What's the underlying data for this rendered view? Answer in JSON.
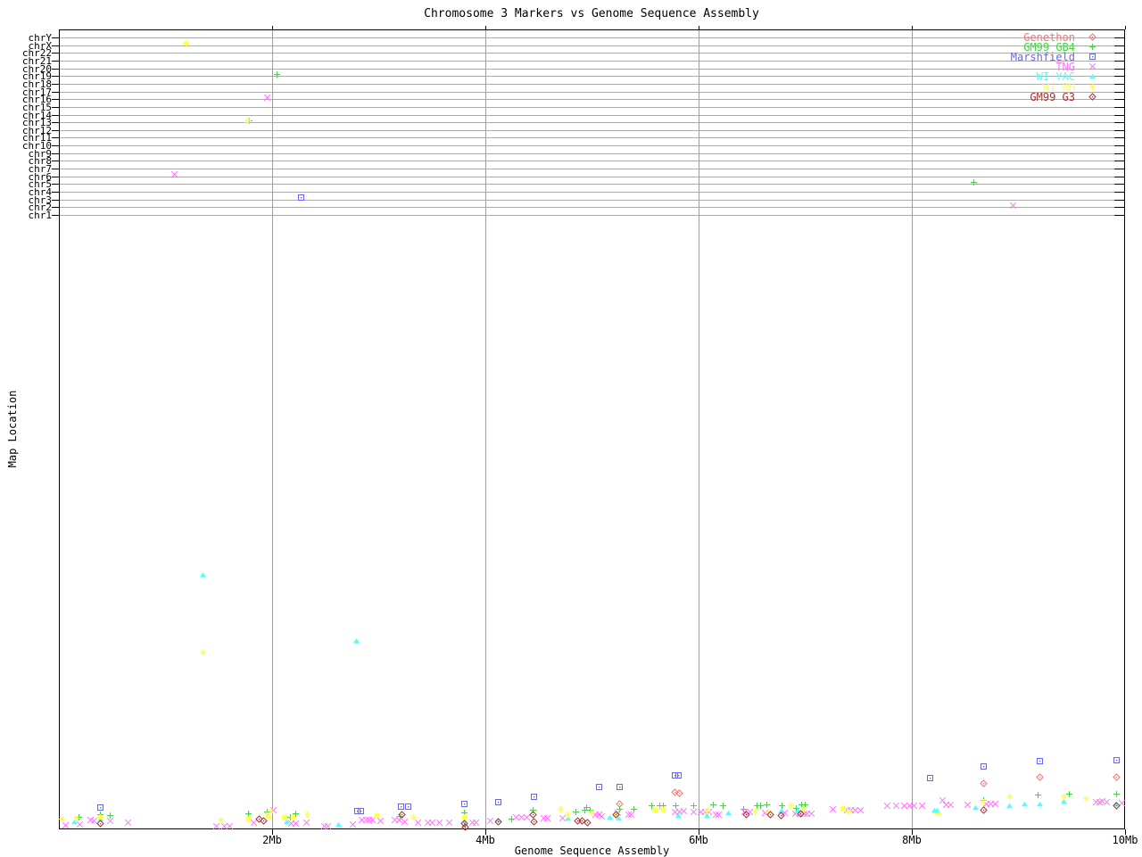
{
  "chart_data": {
    "type": "scatter",
    "title": "Chromosome 3 Markers vs Genome Sequence Assembly",
    "xlabel": "Genome Sequence Assembly",
    "ylabel": "Map Location",
    "x_axis": {
      "units": "Mb of genome sequence assembly",
      "range_mb": [
        0,
        10
      ],
      "major_ticks_mb": [
        2,
        4,
        6,
        8,
        10
      ],
      "tick_labels": [
        "2Mb",
        "4Mb",
        "6Mb",
        "8Mb",
        "10Mb"
      ],
      "gridlines_at_mb": [
        2,
        4,
        6,
        8
      ]
    },
    "y_axis": {
      "top_section_chromosome_rows": [
        "chrY",
        "chrX",
        "chr22",
        "chr21",
        "chr20",
        "chr19",
        "chr18",
        "chr17",
        "chr16",
        "chr15",
        "chr14",
        "chr13",
        "chr12",
        "chr11",
        "chr10",
        "chr9",
        "chr8",
        "chr7",
        "chr6",
        "chr5",
        "chr4",
        "chr3",
        "chr2",
        "chr1"
      ],
      "bottom_section": "continuous chr3 map location, unlabeled, 0 at bottom axis rising toward the right",
      "gridlines": "horizontal gray line across plot at every chromosome row"
    },
    "legend_position": "top-right-inside",
    "point_encoding": "each point = [x in Mb, y]; y is a chromosome-row name string for the discrete top section, or the screen pixel row (960px image) for the unlabeled continuous map-location section",
    "series": [
      {
        "name": "Genethon",
        "symbol": "diamond-dot",
        "color": "#ff7070",
        "points": [
          [
            5.26,
            901
          ],
          [
            5.78,
            888
          ],
          [
            5.82,
            889
          ],
          [
            8.67,
            878
          ],
          [
            9.2,
            871
          ],
          [
            9.92,
            871
          ]
        ]
      },
      {
        "name": "GM99 GB4",
        "symbol": "plus",
        "color": "#3cdc3c",
        "points": [
          [
            1.19,
            "chrX"
          ],
          [
            2.05,
            "chr19"
          ],
          [
            1.79,
            "chr13"
          ],
          [
            8.58,
            "chr5"
          ],
          [
            0.19,
            916
          ],
          [
            0.39,
            913
          ],
          [
            0.48,
            914
          ],
          [
            1.78,
            912
          ],
          [
            1.95,
            910
          ],
          [
            2.17,
            916
          ],
          [
            2.22,
            912
          ],
          [
            3.2,
            915
          ],
          [
            3.8,
            911
          ],
          [
            4.25,
            918
          ],
          [
            4.45,
            908
          ],
          [
            4.85,
            910
          ],
          [
            4.93,
            908
          ],
          [
            4.95,
            905
          ],
          [
            4.98,
            908
          ],
          [
            5.26,
            907
          ],
          [
            5.39,
            907
          ],
          [
            5.56,
            903
          ],
          [
            5.64,
            903
          ],
          [
            5.67,
            903
          ],
          [
            5.79,
            903
          ],
          [
            5.95,
            903
          ],
          [
            6.14,
            902
          ],
          [
            6.23,
            903
          ],
          [
            6.42,
            907
          ],
          [
            6.55,
            903
          ],
          [
            6.58,
            903
          ],
          [
            6.64,
            902
          ],
          [
            6.78,
            903
          ],
          [
            6.92,
            906
          ],
          [
            6.97,
            902
          ],
          [
            7.0,
            902
          ],
          [
            8.67,
            897
          ],
          [
            9.18,
            891
          ],
          [
            9.48,
            890
          ],
          [
            9.92,
            890
          ]
        ]
      },
      {
        "name": "Marshfield",
        "symbol": "square-dot",
        "color": "#6464ff",
        "points": [
          [
            2.27,
            "chr3"
          ],
          [
            0.39,
            905
          ],
          [
            2.8,
            909
          ],
          [
            2.83,
            909
          ],
          [
            3.21,
            904
          ],
          [
            3.28,
            904
          ],
          [
            3.8,
            901
          ],
          [
            4.12,
            899
          ],
          [
            4.46,
            893
          ],
          [
            5.07,
            882
          ],
          [
            5.26,
            882
          ],
          [
            5.78,
            869
          ],
          [
            5.81,
            869
          ],
          [
            8.17,
            872
          ],
          [
            8.67,
            859
          ],
          [
            9.2,
            853
          ],
          [
            9.92,
            852
          ]
        ]
      },
      {
        "name": "TNG",
        "symbol": "x",
        "color": "#ff6eff",
        "points": [
          [
            1.95,
            "chr16"
          ],
          [
            1.08,
            "chr6"
          ],
          [
            8.95,
            "chr2"
          ],
          [
            0.06,
            925
          ],
          [
            0.2,
            924
          ],
          [
            0.3,
            919
          ],
          [
            0.33,
            920
          ],
          [
            0.48,
            920
          ],
          [
            0.65,
            922
          ],
          [
            1.48,
            926
          ],
          [
            1.55,
            926
          ],
          [
            1.6,
            926
          ],
          [
            1.83,
            922
          ],
          [
            2.01,
            908
          ],
          [
            2.18,
            923
          ],
          [
            2.22,
            923
          ],
          [
            2.32,
            922
          ],
          [
            2.49,
            926
          ],
          [
            2.52,
            926
          ],
          [
            2.76,
            924
          ],
          [
            2.84,
            919
          ],
          [
            2.88,
            919
          ],
          [
            2.91,
            919
          ],
          [
            2.94,
            919
          ],
          [
            3.02,
            920
          ],
          [
            3.15,
            919
          ],
          [
            3.19,
            919
          ],
          [
            3.24,
            921
          ],
          [
            3.37,
            922
          ],
          [
            3.46,
            922
          ],
          [
            3.5,
            922
          ],
          [
            3.57,
            922
          ],
          [
            3.66,
            922
          ],
          [
            3.88,
            922
          ],
          [
            3.91,
            922
          ],
          [
            4.05,
            920
          ],
          [
            4.29,
            916
          ],
          [
            4.34,
            916
          ],
          [
            4.39,
            916
          ],
          [
            4.55,
            917
          ],
          [
            4.58,
            917
          ],
          [
            4.72,
            917
          ],
          [
            5.03,
            913
          ],
          [
            5.07,
            913
          ],
          [
            5.09,
            915
          ],
          [
            5.24,
            911
          ],
          [
            5.34,
            913
          ],
          [
            5.37,
            913
          ],
          [
            5.78,
            910
          ],
          [
            5.82,
            910
          ],
          [
            5.86,
            909
          ],
          [
            5.95,
            910
          ],
          [
            6.02,
            910
          ],
          [
            6.06,
            910
          ],
          [
            6.1,
            910
          ],
          [
            6.16,
            913
          ],
          [
            6.19,
            913
          ],
          [
            6.43,
            910
          ],
          [
            6.48,
            910
          ],
          [
            6.62,
            911
          ],
          [
            6.81,
            911
          ],
          [
            6.91,
            912
          ],
          [
            6.95,
            912
          ],
          [
            6.99,
            912
          ],
          [
            7.02,
            912
          ],
          [
            7.06,
            912
          ],
          [
            7.26,
            907
          ],
          [
            7.39,
            908
          ],
          [
            7.43,
            908
          ],
          [
            7.47,
            908
          ],
          [
            7.52,
            908
          ],
          [
            7.77,
            903
          ],
          [
            7.85,
            903
          ],
          [
            7.93,
            903
          ],
          [
            7.98,
            903
          ],
          [
            8.02,
            903
          ],
          [
            8.1,
            903
          ],
          [
            8.29,
            897
          ],
          [
            8.32,
            902
          ],
          [
            8.36,
            902
          ],
          [
            8.52,
            902
          ],
          [
            8.7,
            901
          ],
          [
            8.74,
            901
          ],
          [
            8.78,
            901
          ],
          [
            9.73,
            899
          ],
          [
            9.76,
            899
          ],
          [
            9.79,
            898
          ],
          [
            9.83,
            899
          ],
          [
            9.97,
            900
          ]
        ]
      },
      {
        "name": "WI YAC",
        "symbol": "triangle",
        "color": "#50ffff",
        "points": [
          [
            1.35,
            644
          ],
          [
            2.79,
            718
          ],
          [
            0.15,
            921
          ],
          [
            0.39,
            918
          ],
          [
            2.14,
            921
          ],
          [
            2.62,
            924
          ],
          [
            3.8,
            920
          ],
          [
            4.12,
            919
          ],
          [
            4.77,
            917
          ],
          [
            5.17,
            916
          ],
          [
            5.25,
            917
          ],
          [
            5.81,
            914
          ],
          [
            6.08,
            914
          ],
          [
            6.28,
            911
          ],
          [
            6.77,
            909
          ],
          [
            6.93,
            908
          ],
          [
            8.21,
            908
          ],
          [
            8.24,
            908
          ],
          [
            8.6,
            905
          ],
          [
            8.92,
            903
          ],
          [
            9.06,
            901
          ],
          [
            9.2,
            901
          ],
          [
            9.43,
            898
          ],
          [
            9.91,
            901
          ]
        ]
      },
      {
        "name": "WI RH",
        "symbol": "star8",
        "color": "#ffff50",
        "points": [
          [
            1.19,
            "chrX"
          ],
          [
            1.77,
            "chr13"
          ],
          [
            1.35,
            731
          ],
          [
            0.03,
            918
          ],
          [
            0.16,
            917
          ],
          [
            0.39,
            916
          ],
          [
            1.52,
            919
          ],
          [
            1.78,
            918
          ],
          [
            1.95,
            913
          ],
          [
            1.97,
            916
          ],
          [
            1.99,
            909
          ],
          [
            2.11,
            916
          ],
          [
            2.2,
            916
          ],
          [
            2.33,
            913
          ],
          [
            2.98,
            914
          ],
          [
            3.33,
            916
          ],
          [
            3.8,
            916
          ],
          [
            4.71,
            907
          ],
          [
            4.77,
            913
          ],
          [
            5.0,
            911
          ],
          [
            5.22,
            913
          ],
          [
            5.59,
            908
          ],
          [
            5.65,
            907
          ],
          [
            5.68,
            907
          ],
          [
            6.08,
            909
          ],
          [
            6.53,
            909
          ],
          [
            6.66,
            910
          ],
          [
            6.87,
            903
          ],
          [
            6.98,
            907
          ],
          [
            7.35,
            906
          ],
          [
            7.41,
            910
          ],
          [
            8.25,
            912
          ],
          [
            8.67,
            899
          ],
          [
            8.92,
            893
          ],
          [
            9.43,
            893
          ],
          [
            9.64,
            895
          ]
        ]
      },
      {
        "name": "GM99 G3",
        "symbol": "diamond-dot",
        "color": "#aa3232",
        "points": [
          [
            0.39,
            923
          ],
          [
            1.88,
            918
          ],
          [
            1.92,
            920
          ],
          [
            3.22,
            913
          ],
          [
            3.8,
            923
          ],
          [
            3.81,
            927
          ],
          [
            4.12,
            921
          ],
          [
            4.45,
            913
          ],
          [
            4.46,
            921
          ],
          [
            4.87,
            920
          ],
          [
            4.91,
            920
          ],
          [
            4.96,
            922
          ],
          [
            5.23,
            913
          ],
          [
            6.45,
            913
          ],
          [
            6.67,
            913
          ],
          [
            6.77,
            914
          ],
          [
            6.96,
            912
          ],
          [
            8.67,
            908
          ],
          [
            9.92,
            903
          ]
        ]
      }
    ]
  }
}
